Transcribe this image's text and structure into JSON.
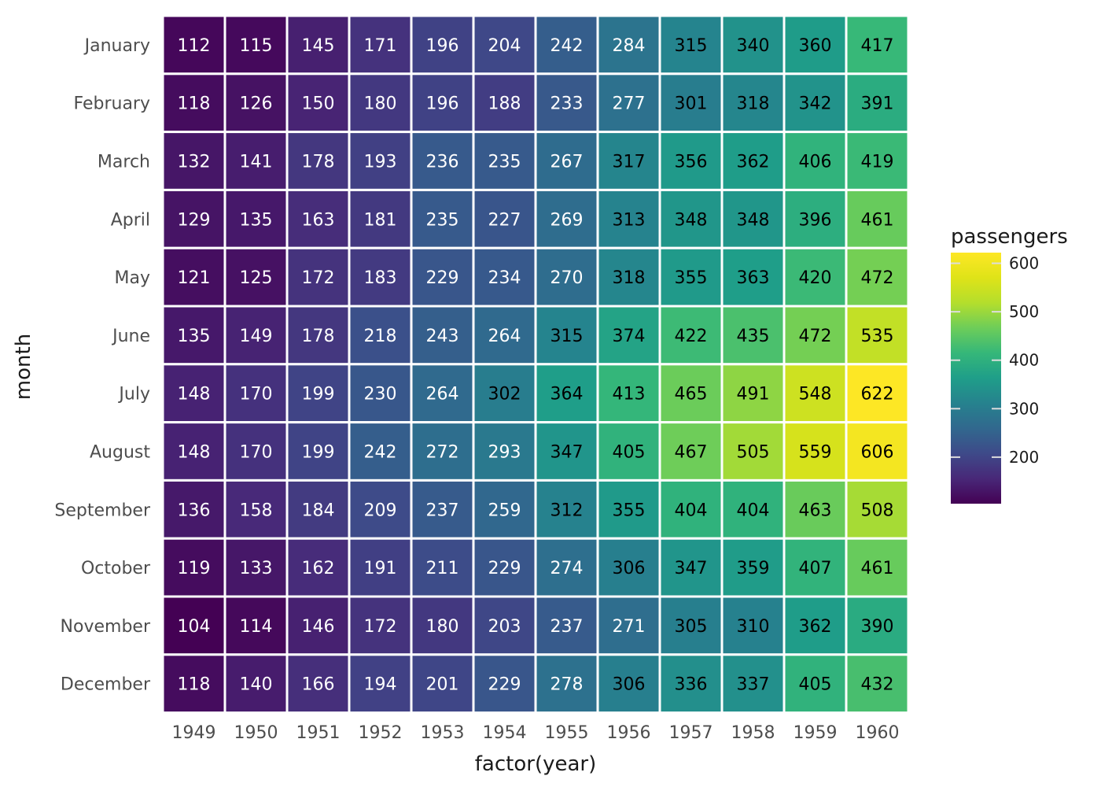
{
  "chart_data": {
    "type": "heatmap",
    "title": "",
    "xlabel": "factor(year)",
    "ylabel": "month",
    "x": [
      "1949",
      "1950",
      "1951",
      "1952",
      "1953",
      "1954",
      "1955",
      "1956",
      "1957",
      "1958",
      "1959",
      "1960"
    ],
    "y": [
      "January",
      "February",
      "March",
      "April",
      "May",
      "June",
      "July",
      "August",
      "September",
      "October",
      "November",
      "December"
    ],
    "values": [
      [
        112,
        115,
        145,
        171,
        196,
        204,
        242,
        284,
        315,
        340,
        360,
        417
      ],
      [
        118,
        126,
        150,
        180,
        196,
        188,
        233,
        277,
        301,
        318,
        342,
        391
      ],
      [
        132,
        141,
        178,
        193,
        236,
        235,
        267,
        317,
        356,
        362,
        406,
        419
      ],
      [
        129,
        135,
        163,
        181,
        235,
        227,
        269,
        313,
        348,
        348,
        396,
        461
      ],
      [
        121,
        125,
        172,
        183,
        229,
        234,
        270,
        318,
        355,
        363,
        420,
        472
      ],
      [
        135,
        149,
        178,
        218,
        243,
        264,
        315,
        374,
        422,
        435,
        472,
        535
      ],
      [
        148,
        170,
        199,
        230,
        264,
        302,
        364,
        413,
        465,
        491,
        548,
        622
      ],
      [
        148,
        170,
        199,
        242,
        272,
        293,
        347,
        405,
        467,
        505,
        559,
        606
      ],
      [
        136,
        158,
        184,
        209,
        237,
        259,
        312,
        355,
        404,
        404,
        463,
        508
      ],
      [
        119,
        133,
        162,
        191,
        211,
        229,
        274,
        306,
        347,
        359,
        407,
        461
      ],
      [
        104,
        114,
        146,
        172,
        180,
        203,
        237,
        271,
        305,
        310,
        362,
        390
      ],
      [
        118,
        140,
        166,
        194,
        201,
        229,
        278,
        306,
        336,
        337,
        405,
        432
      ]
    ],
    "legend": {
      "title": "passengers",
      "ticks": [
        200,
        300,
        400,
        500,
        600
      ],
      "range": [
        104,
        622
      ],
      "placement": "right"
    },
    "colormap": "viridis",
    "text_color_threshold": 300,
    "colors": {
      "text_light": "#ffffff",
      "text_dark": "#000000",
      "cell_border": "#ffffff"
    }
  }
}
